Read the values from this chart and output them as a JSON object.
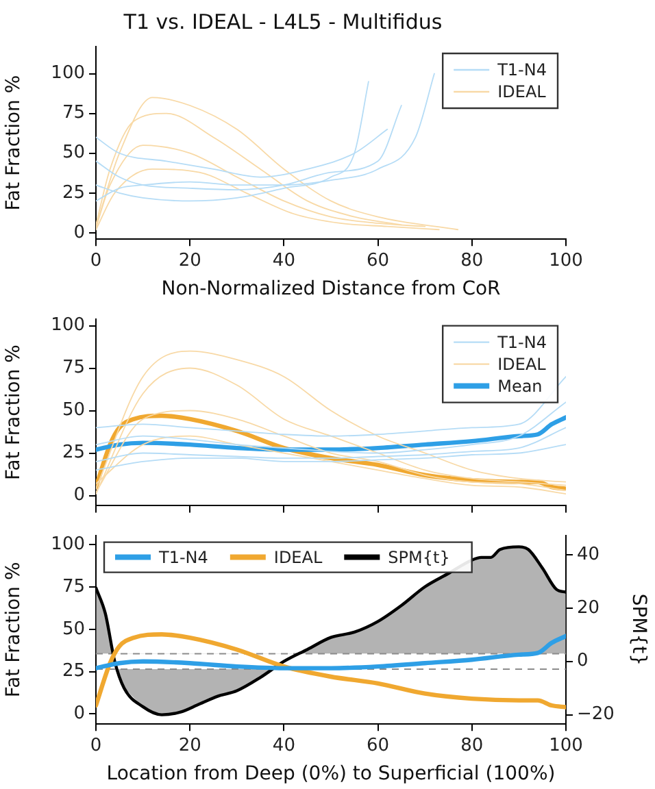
{
  "chart_data": [
    {
      "type": "line",
      "title": "T1 vs. IDEAL - L4L5 - Multifidus",
      "xlabel": "Non-Normalized Distance from CoR",
      "ylabel": "Fat Fraction %",
      "xlim": [
        0,
        100
      ],
      "xticks": [
        0,
        20,
        40,
        60,
        80,
        100
      ],
      "ylim": [
        -4,
        117
      ],
      "yticks": [
        0,
        25,
        50,
        75,
        100
      ],
      "grid": false,
      "legend": "top right",
      "marker": "none",
      "line_style": "solid",
      "series": [
        {
          "name": "T1-N4",
          "color": "#b5dcf6",
          "x": [
            0,
            5,
            10,
            20,
            30,
            40,
            50,
            60,
            65
          ],
          "values": [
            45,
            35,
            30,
            28,
            27,
            30,
            38,
            45,
            80
          ]
        },
        {
          "color": "#b5dcf6",
          "x": [
            0,
            5,
            10,
            20,
            30,
            40,
            50,
            55,
            58
          ],
          "values": [
            30,
            25,
            22,
            20,
            22,
            28,
            35,
            50,
            95
          ]
        },
        {
          "color": "#b5dcf6",
          "x": [
            0,
            5,
            10,
            20,
            30,
            40,
            50,
            60,
            68,
            72
          ],
          "values": [
            20,
            28,
            30,
            32,
            30,
            30,
            33,
            40,
            60,
            100
          ]
        },
        {
          "color": "#b5dcf6",
          "x": [
            0,
            5,
            15,
            25,
            35,
            45,
            55,
            62
          ],
          "values": [
            60,
            50,
            45,
            40,
            35,
            40,
            50,
            65
          ]
        },
        {
          "name": "IDEAL",
          "color": "#f8d9a6",
          "x": [
            0,
            3,
            8,
            15,
            25,
            35,
            45,
            55,
            65
          ],
          "values": [
            5,
            40,
            70,
            75,
            60,
            40,
            20,
            10,
            5
          ]
        },
        {
          "color": "#f8d9a6",
          "x": [
            0,
            3,
            10,
            20,
            30,
            40,
            50,
            60,
            70
          ],
          "values": [
            3,
            30,
            55,
            50,
            35,
            20,
            10,
            6,
            4
          ]
        },
        {
          "color": "#f8d9a6",
          "x": [
            0,
            4,
            12,
            22,
            32,
            42,
            52,
            62,
            73
          ],
          "values": [
            2,
            25,
            40,
            38,
            25,
            12,
            6,
            4,
            2
          ]
        },
        {
          "color": "#f8d9a6",
          "x": [
            0,
            5,
            12,
            20,
            30,
            40,
            50,
            60,
            77
          ],
          "values": [
            4,
            50,
            85,
            80,
            65,
            40,
            20,
            10,
            2
          ]
        }
      ]
    },
    {
      "type": "line",
      "ylabel": "Fat Fraction %",
      "xlim": [
        0,
        100
      ],
      "xticks": [
        0,
        20,
        40,
        60,
        80,
        100
      ],
      "ylim": [
        -6,
        104
      ],
      "yticks": [
        0,
        25,
        50,
        75,
        100
      ],
      "tick_labels": "y",
      "grid": false,
      "legend": "top right",
      "marker": "none",
      "line_style": "solid",
      "x": [
        0,
        10,
        20,
        30,
        40,
        50,
        60,
        70,
        80,
        90,
        100
      ],
      "series": [
        {
          "name": "T1-N4",
          "color": "#b5dcf6",
          "values": [
            20,
            25,
            24,
            23,
            22,
            22,
            23,
            24,
            26,
            28,
            40
          ]
        },
        {
          "color": "#b5dcf6",
          "values": [
            40,
            42,
            40,
            38,
            36,
            35,
            36,
            38,
            40,
            42,
            70
          ]
        },
        {
          "color": "#b5dcf6",
          "values": [
            30,
            35,
            33,
            30,
            28,
            26,
            25,
            27,
            30,
            35,
            55
          ]
        },
        {
          "color": "#b5dcf6",
          "values": [
            15,
            20,
            22,
            22,
            20,
            20,
            21,
            22,
            24,
            25,
            30
          ]
        },
        {
          "name": "IDEAL",
          "color": "#f8d9a6",
          "values": [
            1,
            60,
            75,
            65,
            45,
            35,
            25,
            15,
            10,
            8,
            6
          ]
        },
        {
          "color": "#f8d9a6",
          "values": [
            2,
            45,
            50,
            45,
            35,
            25,
            20,
            12,
            8,
            7,
            3
          ]
        },
        {
          "color": "#f8d9a6",
          "values": [
            7,
            30,
            35,
            30,
            25,
            20,
            15,
            10,
            6,
            5,
            1
          ]
        },
        {
          "color": "#f8d9a6",
          "values": [
            4,
            70,
            85,
            80,
            70,
            50,
            35,
            25,
            15,
            10,
            8
          ]
        },
        {
          "name": "Mean",
          "color": "#2e9fe6",
          "x": [
            0,
            5,
            10,
            20,
            30,
            40,
            50,
            60,
            70,
            80,
            90,
            94,
            97,
            100
          ],
          "values": [
            27,
            30,
            31,
            30,
            28,
            27,
            27,
            28,
            30,
            32,
            35,
            36,
            42,
            46
          ]
        },
        {
          "color": "#f0a830",
          "x": [
            0,
            3,
            5,
            8,
            14,
            20,
            30,
            40,
            50,
            60,
            70,
            80,
            90,
            94,
            97,
            100
          ],
          "values": [
            5,
            30,
            40,
            45,
            47,
            45,
            38,
            28,
            22,
            18,
            12,
            9,
            8,
            8,
            5,
            4
          ]
        }
      ]
    },
    {
      "type": "line",
      "xlabel": "Location from Deep (0%) to Superficial (100%)",
      "ylabel": "Fat Fraction %",
      "y2label": "SPM{t}",
      "xlim": [
        0,
        100
      ],
      "xticks": [
        0,
        20,
        40,
        60,
        80,
        100
      ],
      "ylim": [
        -6,
        105.5
      ],
      "yticks": [
        0,
        25,
        50,
        75,
        100
      ],
      "y2lim": [
        -23.5,
        47.3
      ],
      "y2ticks": [
        -20,
        0,
        20,
        40
      ],
      "grid": false,
      "legend": "top left",
      "marker": "none",
      "line_style": "solid",
      "ref_lines": [
        {
          "axis": "y2",
          "value": 2.9,
          "color": "#8c8c8c",
          "line_style": "dashed"
        },
        {
          "axis": "y2",
          "value": -2.9,
          "color": "#8c8c8c",
          "line_style": "dashed"
        }
      ],
      "series": [
        {
          "name": "T1-N4",
          "color": "#2e9fe6",
          "x": [
            0,
            5,
            10,
            20,
            30,
            40,
            50,
            60,
            70,
            80,
            90,
            94,
            97,
            100
          ],
          "values": [
            27,
            30,
            31,
            30,
            28,
            27,
            27,
            28,
            30,
            32,
            35,
            36,
            42,
            46
          ]
        },
        {
          "name": "IDEAL",
          "color": "#f0a830",
          "x": [
            0,
            3,
            5,
            8,
            14,
            20,
            30,
            40,
            50,
            60,
            70,
            80,
            90,
            94,
            97,
            100
          ],
          "values": [
            5,
            30,
            40,
            45,
            47,
            45,
            38,
            28,
            22,
            18,
            12,
            9,
            8,
            8,
            5,
            4
          ]
        },
        {
          "name": "SPM{t}",
          "color": "#000000",
          "axis": "y2",
          "x": [
            0,
            2,
            4,
            6,
            10,
            14,
            18,
            22,
            26,
            30,
            35,
            40,
            45,
            50,
            55,
            60,
            65,
            70,
            75,
            80,
            82,
            84,
            86,
            90,
            92,
            95,
            98,
            100
          ],
          "values": [
            27.6,
            18,
            0,
            -10,
            -17,
            -20,
            -19,
            -16,
            -13,
            -11,
            -6,
            0,
            4.5,
            9,
            11,
            15,
            21,
            28,
            33,
            38,
            39,
            39,
            42,
            43,
            42,
            35,
            27,
            26
          ]
        }
      ]
    }
  ]
}
